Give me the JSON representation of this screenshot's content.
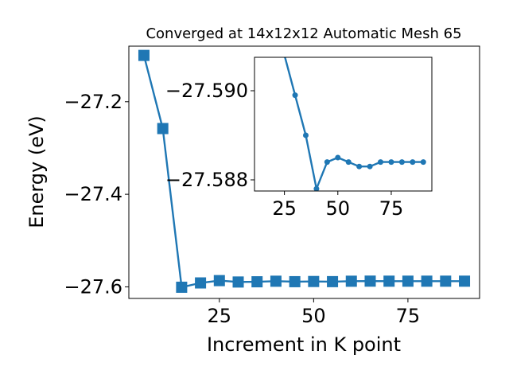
{
  "chart_data": [
    {
      "type": "line",
      "title": "Converged at 14x12x12 Automatic Mesh 65",
      "xlabel": "Increment in K point",
      "ylabel": "Energy (eV)",
      "xlim": [
        1,
        94
      ],
      "ylim": [
        -27.625,
        -27.08
      ],
      "xticks": [
        25,
        50,
        75
      ],
      "xtick_labels": [
        "25",
        "50",
        "75"
      ],
      "yticks": [
        -27.2,
        -27.4,
        -27.6
      ],
      "ytick_labels": [
        "−27.2",
        "−27.4",
        "−27.6"
      ],
      "grid": false,
      "legend": "none",
      "marker": "square",
      "color": "#1f77b4",
      "series": [
        {
          "x": [
            5,
            10,
            15,
            20,
            25,
            30,
            35,
            40,
            45,
            50,
            55,
            60,
            65,
            70,
            75,
            80,
            85,
            90
          ],
          "values": [
            -27.1,
            -27.258,
            -27.6008,
            -27.5915,
            -27.5865,
            -27.5895,
            -27.589,
            -27.5878,
            -27.5888,
            -27.5884,
            -27.5887,
            -27.5878,
            -27.5876,
            -27.5877,
            -27.5877,
            -27.5877,
            -27.5877,
            -27.5877
          ]
        }
      ]
    },
    {
      "type": "line",
      "title": "",
      "xlabel": "",
      "ylabel": "",
      "xlim": [
        11,
        94
      ],
      "ylim": [
        -27.58775,
        -27.59075
      ],
      "xticks": [
        25,
        50,
        75
      ],
      "xtick_labels": [
        "25",
        "50",
        "75"
      ],
      "yticks": [
        -27.59,
        -27.588
      ],
      "ytick_labels": [
        "−27.590",
        "−27.588"
      ],
      "grid": false,
      "legend": "none",
      "marker": "circle",
      "color": "#1f77b4",
      "series": [
        {
          "x": [
            25,
            30,
            35,
            40,
            45,
            50,
            55,
            60,
            65,
            70,
            75,
            80,
            85,
            90
          ],
          "values": [
            -27.5908,
            -27.5899,
            -27.589,
            -27.5878,
            -27.5884,
            -27.5885,
            -27.5884,
            -27.5883,
            -27.5883,
            -27.5884,
            -27.5884,
            -27.5884,
            -27.5884,
            -27.5884
          ]
        }
      ]
    }
  ]
}
